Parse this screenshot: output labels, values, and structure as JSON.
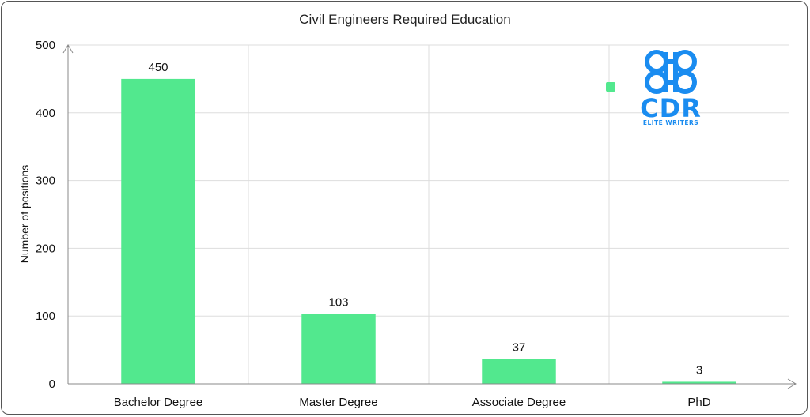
{
  "chart_data": {
    "type": "bar",
    "title": "Civil Engineers Required Education",
    "xlabel": "",
    "ylabel": "Number of positions",
    "categories": [
      "Bachelor Degree",
      "Master Degree",
      "Associate Degree",
      "PhD"
    ],
    "values": [
      450,
      103,
      37,
      3
    ],
    "data_labels": [
      "450",
      "103",
      "37",
      "3"
    ],
    "y_ticks": [
      0,
      100,
      200,
      300,
      400,
      500
    ],
    "ylim": [
      0,
      500
    ],
    "grid": true,
    "legend": "none",
    "bar_color": "#52e88e"
  },
  "logo": {
    "letters": "CDR",
    "tagline": "ELITE WRITERS",
    "color": "#1a8cf0",
    "marker_color": "#52e88e"
  }
}
